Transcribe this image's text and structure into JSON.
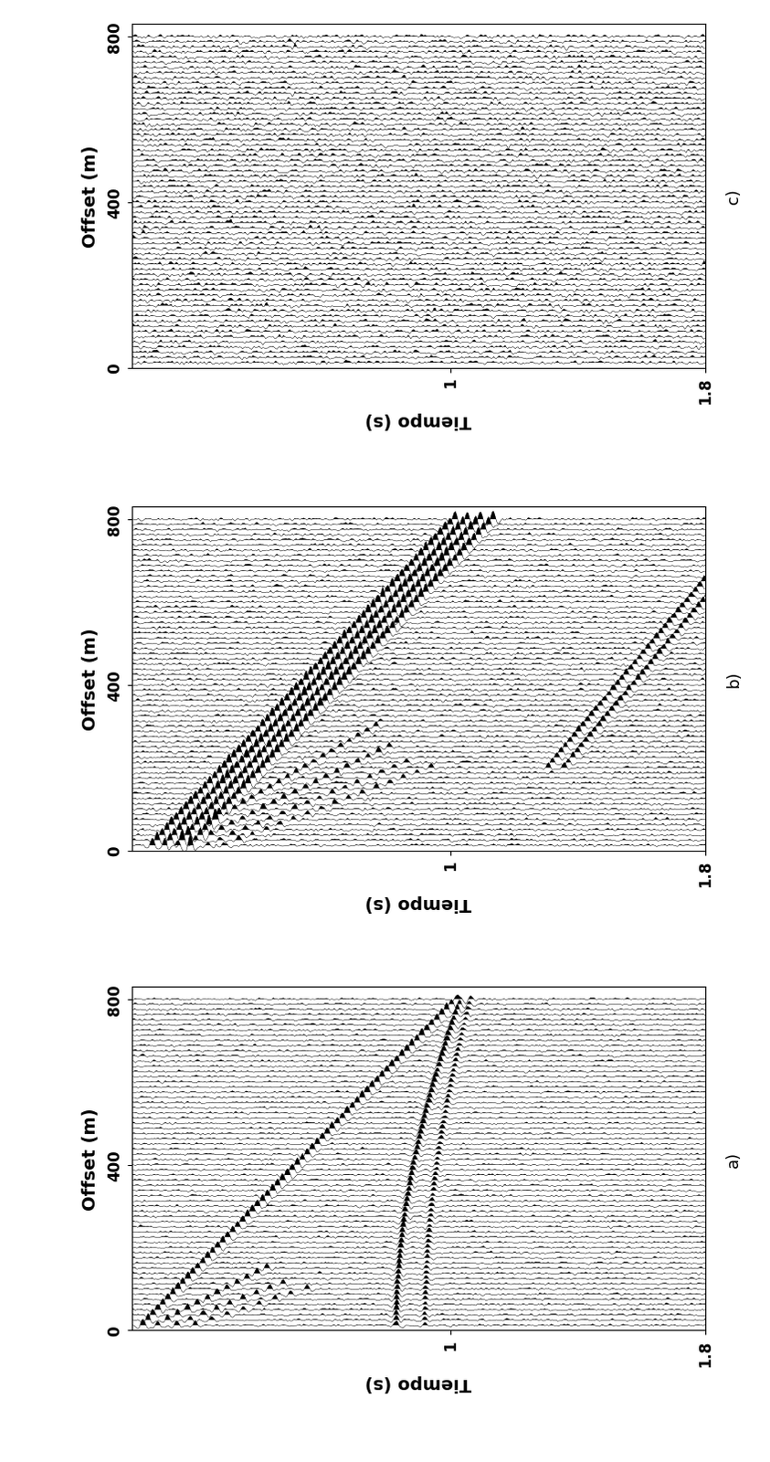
{
  "chart_data": [
    {
      "type": "wiggle",
      "label": "a)",
      "x_label": "Tiempo (s)",
      "y_label": "Offset (m)",
      "xlim": [
        0,
        1.8
      ],
      "xticks": [
        1,
        1.8
      ],
      "ylim": [
        0,
        830
      ],
      "yticks": [
        0,
        400,
        800
      ],
      "color": "#000000",
      "noise_amplitude": 0.12,
      "offsets": [
        12.5,
        25,
        37.5,
        50,
        62.5,
        75,
        87.5,
        100,
        112.5,
        125,
        137.5,
        150,
        162.5,
        175,
        187.5,
        200,
        212.5,
        225,
        237.5,
        250,
        262.5,
        275,
        287.5,
        300,
        312.5,
        325,
        337.5,
        350,
        362.5,
        375,
        387.5,
        400,
        412.5,
        425,
        437.5,
        450,
        462.5,
        475,
        487.5,
        500,
        512.5,
        525,
        537.5,
        550,
        562.5,
        575,
        587.5,
        600,
        612.5,
        625,
        637.5,
        650,
        662.5,
        675,
        687.5,
        700,
        712.5,
        725,
        737.5,
        750,
        762.5,
        775,
        787.5,
        800
      ],
      "events": [
        {
          "kind": "linear",
          "t0": 0.02,
          "velocity": 800,
          "amplitude": 1.0,
          "cycles": 1
        },
        {
          "kind": "linear",
          "t0": 0.05,
          "velocity": 400,
          "amplitude": 0.8,
          "cycles": 1,
          "max_offset": 160
        },
        {
          "kind": "linear",
          "t0": 0.1,
          "velocity": 300,
          "amplitude": 0.7,
          "cycles": 1,
          "max_offset": 120
        },
        {
          "kind": "linear",
          "t0": 0.15,
          "velocity": 250,
          "amplitude": 0.6,
          "cycles": 1,
          "max_offset": 100
        },
        {
          "kind": "hyperbolic",
          "t0": 0.83,
          "velocity": 1300,
          "amplitude": 0.8,
          "cycles": 1
        },
        {
          "kind": "hyperbolic",
          "t0": 0.92,
          "velocity": 1500,
          "amplitude": 0.5,
          "cycles": 1
        }
      ]
    },
    {
      "type": "wiggle",
      "label": "b)",
      "x_label": "Tiempo (s)",
      "y_label": "Offset (m)",
      "xlim": [
        0,
        1.8
      ],
      "xticks": [
        1,
        1.8
      ],
      "ylim": [
        0,
        830
      ],
      "yticks": [
        0,
        400,
        800
      ],
      "color": "#000000",
      "noise_amplitude": 0.15,
      "offsets": [
        12.5,
        25,
        37.5,
        50,
        62.5,
        75,
        87.5,
        100,
        112.5,
        125,
        137.5,
        150,
        162.5,
        175,
        187.5,
        200,
        212.5,
        225,
        237.5,
        250,
        262.5,
        275,
        287.5,
        300,
        312.5,
        325,
        337.5,
        350,
        362.5,
        375,
        387.5,
        400,
        412.5,
        425,
        437.5,
        450,
        462.5,
        475,
        487.5,
        500,
        512.5,
        525,
        537.5,
        550,
        562.5,
        575,
        587.5,
        600,
        612.5,
        625,
        637.5,
        650,
        662.5,
        675,
        687.5,
        700,
        712.5,
        725,
        737.5,
        750,
        762.5,
        775,
        787.5,
        800
      ],
      "events": [
        {
          "kind": "linear",
          "t0": 0.05,
          "velocity": 830,
          "amplitude": 1.2,
          "cycles": 4
        },
        {
          "kind": "linear",
          "t0": 0.1,
          "velocity": 450,
          "amplitude": 0.7,
          "cycles": 1,
          "max_offset": 300
        },
        {
          "kind": "linear",
          "t0": 0.15,
          "velocity": 380,
          "amplitude": 0.7,
          "cycles": 1,
          "max_offset": 250
        },
        {
          "kind": "linear",
          "t0": 0.2,
          "velocity": 320,
          "amplitude": 0.6,
          "cycles": 1,
          "max_offset": 220
        },
        {
          "kind": "linear",
          "t0": 0.25,
          "velocity": 290,
          "amplitude": 0.6,
          "cycles": 1,
          "max_offset": 200
        },
        {
          "kind": "linear",
          "t0": 1.09,
          "velocity": 920,
          "amplitude": 0.8,
          "cycles": 1,
          "min_offset": 200
        },
        {
          "kind": "linear",
          "t0": 1.14,
          "velocity": 920,
          "amplitude": 0.8,
          "cycles": 1,
          "min_offset": 200
        }
      ]
    },
    {
      "type": "wiggle",
      "label": "c)",
      "x_label": "Tiempo (s)",
      "y_label": "Offset (m)",
      "xlim": [
        0,
        1.8
      ],
      "xticks": [
        1,
        1.8
      ],
      "ylim": [
        0,
        830
      ],
      "yticks": [
        0,
        400,
        800
      ],
      "color": "#000000",
      "noise_amplitude": 0.2,
      "offsets": [
        12.5,
        25,
        37.5,
        50,
        62.5,
        75,
        87.5,
        100,
        112.5,
        125,
        137.5,
        150,
        162.5,
        175,
        187.5,
        200,
        212.5,
        225,
        237.5,
        250,
        262.5,
        275,
        287.5,
        300,
        312.5,
        325,
        337.5,
        350,
        362.5,
        375,
        387.5,
        400,
        412.5,
        425,
        437.5,
        450,
        462.5,
        475,
        487.5,
        500,
        512.5,
        525,
        537.5,
        550,
        562.5,
        575,
        587.5,
        600,
        612.5,
        625,
        637.5,
        650,
        662.5,
        675,
        687.5,
        700,
        712.5,
        725,
        737.5,
        750,
        762.5,
        775,
        787.5,
        800
      ],
      "events": []
    }
  ]
}
